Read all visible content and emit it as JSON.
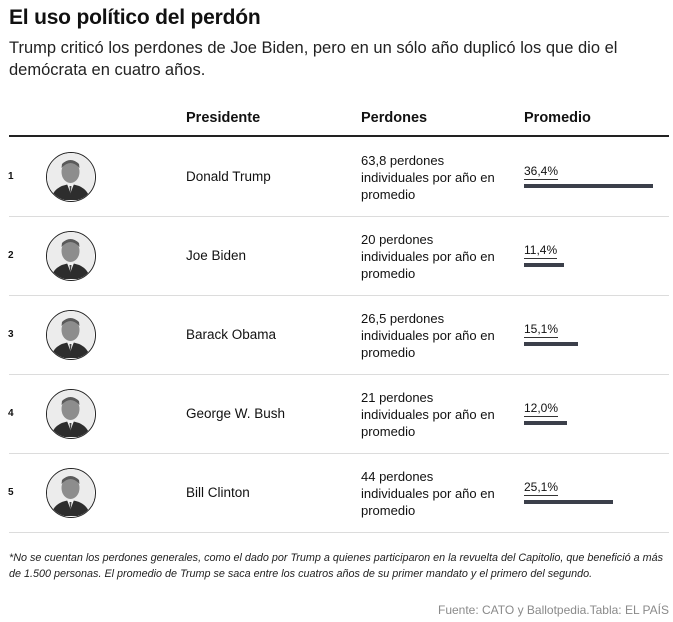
{
  "header": {
    "title": "El uso político del perdón",
    "subtitle": "Trump criticó los perdones de Joe Biden, pero en un sólo año duplicó los que dio el demócrata en cuatro años."
  },
  "columns": {
    "president": "Presidente",
    "pardons": "Perdones",
    "average": "Promedio"
  },
  "chart_data": {
    "type": "table",
    "title": "El uso político del perdón",
    "columns": [
      "Presidente",
      "Perdones",
      "Promedio"
    ],
    "rows": [
      {
        "rank": "1",
        "name": "Donald Trump",
        "pardons_text": "63,8 perdones individuales por año en promedio",
        "pardons": 63.8,
        "avg_label": "36,4%",
        "avg": 36.4
      },
      {
        "rank": "2",
        "name": "Joe Biden",
        "pardons_text": "20 perdones individuales por año en promedio",
        "pardons": 20,
        "avg_label": "11,4%",
        "avg": 11.4
      },
      {
        "rank": "3",
        "name": "Barack Obama",
        "pardons_text": "26,5 perdones individuales por año en promedio",
        "pardons": 26.5,
        "avg_label": "15,1%",
        "avg": 15.1
      },
      {
        "rank": "4",
        "name": "George W. Bush",
        "pardons_text": "21 perdones individuales por año en promedio",
        "pardons": 21,
        "avg_label": "12,0%",
        "avg": 12.0
      },
      {
        "rank": "5",
        "name": "Bill Clinton",
        "pardons_text": "44 perdones individuales por año en promedio",
        "pardons": 44,
        "avg_label": "25,1%",
        "avg": 25.1
      }
    ],
    "bar_max": 36.4,
    "bar_color": "#3b3f4a"
  },
  "footer": {
    "note": "*No se cuentan los perdones generales, como el dado por Trump a quienes participaron en la revuelta del Capitolio, que benefició a más de 1.500 personas. El promedio de Trump se saca entre los cuatros años de su primer mandato y el primero del segundo.",
    "source": "Fuente: CATO y Ballotpedia.Tabla: EL PAÍS"
  }
}
